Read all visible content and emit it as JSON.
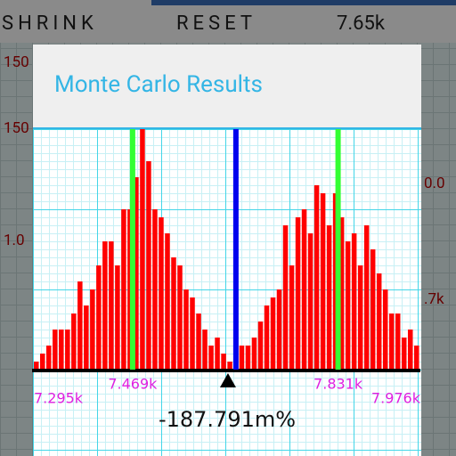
{
  "toolbar": {
    "shrink": "SHRINK",
    "reset": "RESET",
    "value": "7.65k"
  },
  "background": {
    "labels": [
      "150",
      "150",
      "1.0",
      "0.0",
      ".7k"
    ]
  },
  "dialog": {
    "title": "Monte Carlo Results"
  },
  "chart_data": {
    "type": "histogram",
    "bins": [
      7.295,
      7.306,
      7.317,
      7.328,
      7.339,
      7.35,
      7.361,
      7.372,
      7.383,
      7.394,
      7.405,
      7.416,
      7.427,
      7.438,
      7.449,
      7.46,
      7.471,
      7.482,
      7.493,
      7.504,
      7.515,
      7.526,
      7.537,
      7.548,
      7.559,
      7.57,
      7.581,
      7.592,
      7.603,
      7.614,
      7.625,
      7.636,
      7.647,
      7.657,
      7.668,
      7.679,
      7.69,
      7.701,
      7.712,
      7.723,
      7.734,
      7.745,
      7.756,
      7.767,
      7.778,
      7.789,
      7.8,
      7.811,
      7.822,
      7.833,
      7.844,
      7.855,
      7.866,
      7.877,
      7.888,
      7.899,
      7.91,
      7.921,
      7.932,
      7.943,
      7.954,
      7.965,
      7.976
    ],
    "values": [
      1,
      2,
      3,
      5,
      5,
      5,
      7,
      11,
      8,
      10,
      13,
      16,
      16,
      13,
      20,
      20,
      24,
      30,
      26,
      20,
      19,
      17,
      14,
      13,
      10,
      9,
      7,
      5,
      3,
      4,
      2,
      1,
      3,
      3,
      3,
      4,
      6,
      8,
      9,
      10,
      18,
      13,
      19,
      20,
      17,
      23,
      22,
      18,
      22,
      19,
      16,
      17,
      13,
      18,
      15,
      12,
      10,
      7,
      7,
      4,
      5,
      3
    ],
    "color": "#ff0000",
    "xlim": [
      7.295,
      7.976
    ],
    "ylim": [
      0,
      30
    ],
    "xticks": [
      {
        "value": 7.295,
        "label": "7.295k"
      },
      {
        "value": 7.469,
        "label": "7.469k"
      },
      {
        "value": 7.831,
        "label": "7.831k"
      },
      {
        "value": 7.976,
        "label": "7.976k"
      }
    ],
    "markers": [
      {
        "value": 7.469,
        "color": "#33ff33"
      },
      {
        "value": 7.651,
        "color": "#0000ee"
      },
      {
        "value": 7.831,
        "color": "#33ff33"
      }
    ],
    "pointer": 7.637,
    "readout": "-187.791m%"
  }
}
